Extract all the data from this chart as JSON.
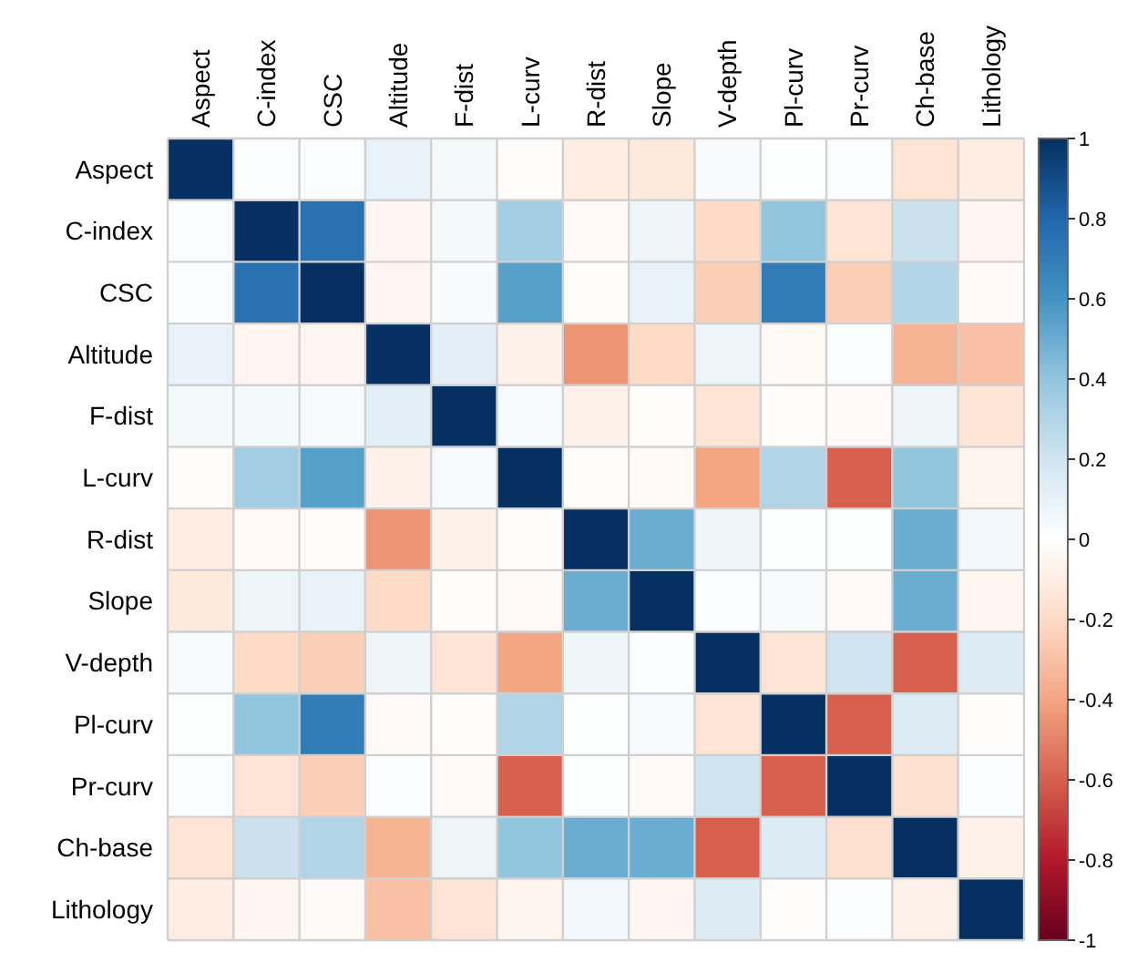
{
  "chart_data": {
    "type": "heatmap",
    "categories": [
      "Aspect",
      "C-index",
      "CSC",
      "Altitude",
      "F-dist",
      "L-curv",
      "R-dist",
      "Slope",
      "V-depth",
      "Pl-curv",
      "Pr-curv",
      "Ch-base",
      "Lithology"
    ],
    "y_categories": [
      "Aspect",
      "C-index",
      "CSC",
      "Altitude",
      "F-dist",
      "L-curv",
      "R-dist",
      "Slope",
      "V-depth",
      "Pl-curv",
      "Pr-curv",
      "Ch-base",
      "Lithology"
    ],
    "cells": [
      [
        1,
        0.02,
        0.02,
        0.1,
        0.05,
        -0.02,
        -0.1,
        -0.12,
        0.03,
        0.01,
        0.02,
        -0.15,
        -0.1
      ],
      [
        0.02,
        1,
        0.75,
        -0.05,
        0.05,
        0.35,
        -0.03,
        0.08,
        -0.2,
        0.4,
        -0.15,
        0.22,
        -0.05
      ],
      [
        0.02,
        0.75,
        1,
        -0.05,
        0.03,
        0.55,
        -0.02,
        0.1,
        -0.25,
        0.7,
        -0.25,
        0.3,
        -0.03
      ],
      [
        0.1,
        -0.05,
        -0.05,
        1,
        0.12,
        -0.08,
        -0.45,
        -0.2,
        0.08,
        -0.03,
        0.02,
        -0.35,
        -0.3
      ],
      [
        0.05,
        0.05,
        0.03,
        0.12,
        1,
        0.04,
        -0.08,
        -0.01,
        -0.15,
        -0.01,
        -0.03,
        0.08,
        -0.15
      ],
      [
        -0.02,
        0.35,
        0.55,
        -0.08,
        0.04,
        1,
        -0.01,
        -0.03,
        -0.4,
        0.3,
        -0.6,
        0.4,
        -0.06
      ],
      [
        -0.1,
        -0.03,
        -0.02,
        -0.45,
        -0.08,
        -0.01,
        1,
        0.5,
        0.07,
        0.01,
        0.01,
        0.5,
        0.06
      ],
      [
        -0.12,
        0.08,
        0.1,
        -0.2,
        -0.01,
        -0.03,
        0.5,
        1,
        0.02,
        0.04,
        -0.03,
        0.5,
        -0.05
      ],
      [
        0.03,
        -0.2,
        -0.25,
        0.08,
        -0.15,
        -0.4,
        0.07,
        0.02,
        1,
        -0.15,
        0.2,
        -0.6,
        0.15
      ],
      [
        0.01,
        0.4,
        0.7,
        -0.03,
        -0.01,
        0.3,
        0.01,
        0.04,
        -0.15,
        1,
        -0.6,
        0.15,
        -0.01
      ],
      [
        0.02,
        -0.15,
        -0.25,
        0.02,
        -0.03,
        -0.6,
        0.01,
        -0.03,
        0.2,
        -0.6,
        1,
        -0.17,
        0.02
      ],
      [
        -0.15,
        0.22,
        0.3,
        -0.35,
        0.08,
        0.4,
        0.5,
        0.5,
        -0.6,
        0.15,
        -0.17,
        1,
        -0.08
      ],
      [
        -0.1,
        -0.05,
        -0.03,
        -0.3,
        -0.15,
        -0.06,
        0.06,
        -0.05,
        0.15,
        -0.01,
        0.02,
        -0.08,
        1
      ]
    ],
    "clim": [
      -1,
      1
    ],
    "cticks": [
      -1,
      -0.8,
      -0.6,
      -0.4,
      -0.2,
      0,
      0.2,
      0.4,
      0.6,
      0.8,
      1
    ]
  }
}
